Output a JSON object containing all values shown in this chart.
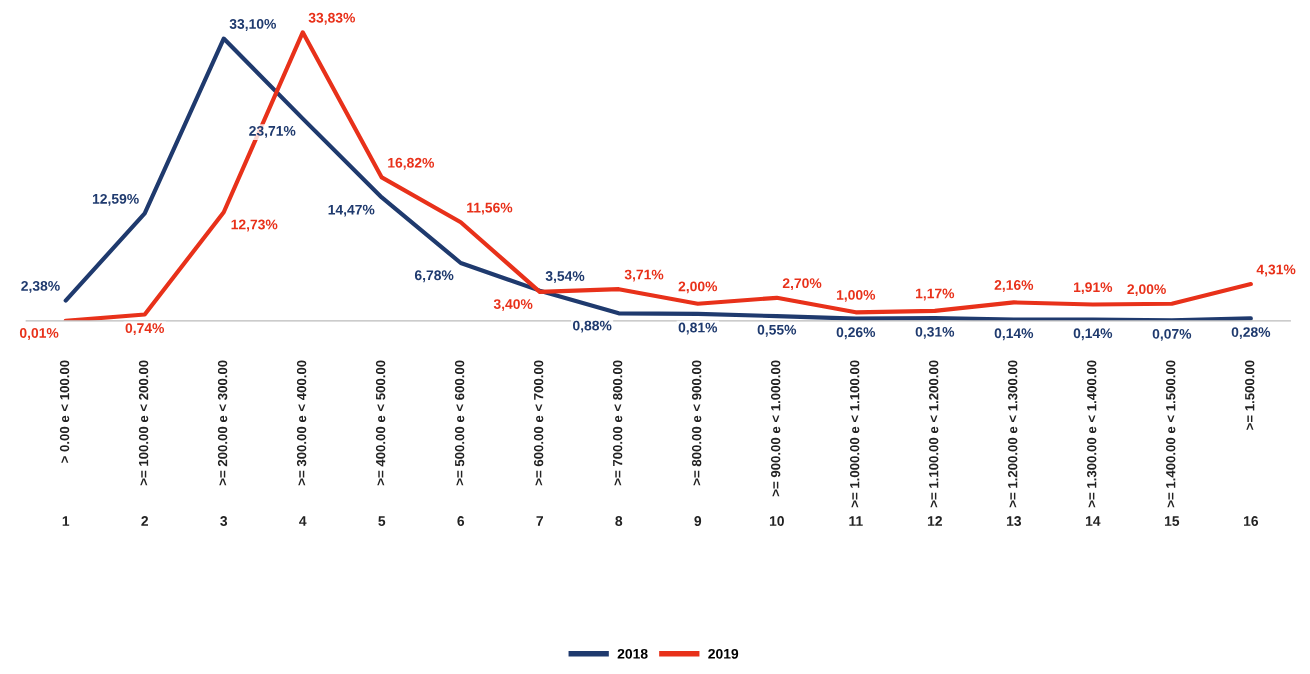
{
  "chart_data": {
    "type": "line",
    "categories": [
      "> 0.00 e < 100.00\n1",
      ">= 100.00 e < 200.00\n2",
      ">= 200.00 e < 300.00\n3",
      ">= 300.00 e < 400.00\n4",
      ">= 400.00 e < 500.00\n5",
      ">= 500.00 e < 600.00\n6",
      ">= 600.00 e < 700.00\n7",
      ">= 700.00 e < 800.00\n8",
      ">= 800.00 e < 900.00\n9",
      ">= 900.00 e < 1.000.00\n10",
      ">= 1.000.00 e < 1.100.00\n11",
      ">= 1.100.00 e < 1.200.00\n12",
      ">= 1.200.00 e < 1.300.00\n13",
      ">= 1.300.00 e < 1.400.00\n14",
      ">= 1.400.00 e < 1.500.00\n15",
      ">= 1.500.00\n16"
    ],
    "series": [
      {
        "name": "2018",
        "color": "#1f3a6e",
        "values": [
          2.38,
          12.59,
          33.1,
          23.71,
          14.47,
          6.78,
          3.54,
          0.88,
          0.81,
          0.55,
          0.26,
          0.31,
          0.14,
          0.14,
          0.07,
          0.28
        ],
        "value_labels": [
          "2,38%",
          "12,59%",
          "33,10%",
          "23,71%",
          "14,47%",
          "6,78%",
          "3,54%",
          "0,88%",
          "0,81%",
          "0,55%",
          "0,26%",
          "0,31%",
          "0,14%",
          "0,14%",
          "0,07%",
          "0,28%"
        ]
      },
      {
        "name": "2019",
        "color": "#e8311a",
        "values": [
          0.01,
          0.74,
          12.73,
          33.83,
          16.82,
          11.56,
          3.4,
          3.71,
          2.0,
          2.7,
          1.0,
          1.17,
          2.16,
          1.91,
          2.0,
          4.31
        ],
        "value_labels": [
          "0,01%",
          "0,74%",
          "12,73%",
          "33,83%",
          "16,82%",
          "11,56%",
          "3,40%",
          "3,71%",
          "2,00%",
          "2,70%",
          "1,00%",
          "1,17%",
          "2,16%",
          "1,91%",
          "2,00%",
          "4,31%"
        ]
      }
    ],
    "tick_labels": "x",
    "legend": "bottom",
    "marker": "none",
    "line_style": "solid"
  }
}
